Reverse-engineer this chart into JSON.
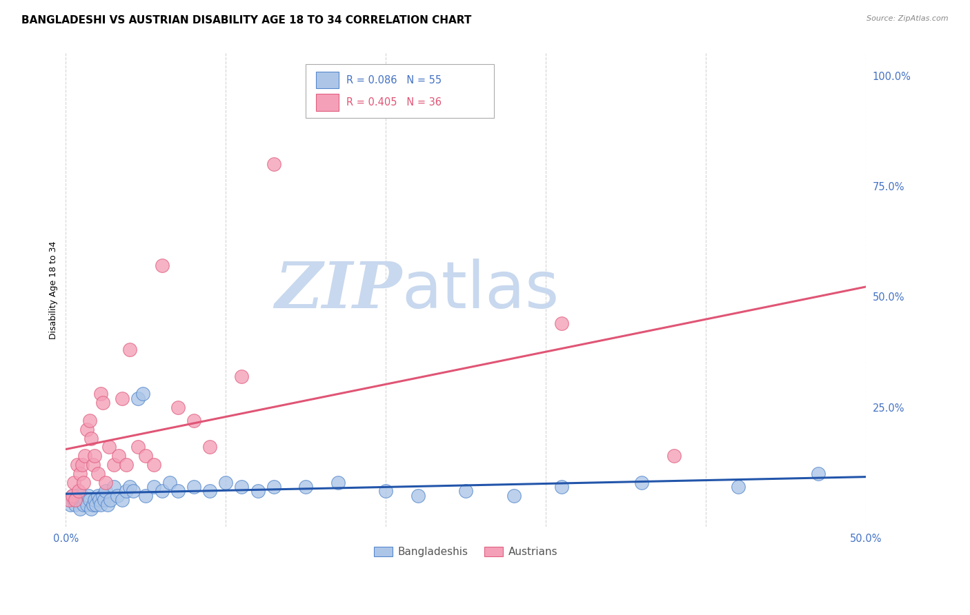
{
  "title": "BANGLADESHI VS AUSTRIAN DISABILITY AGE 18 TO 34 CORRELATION CHART",
  "source": "Source: ZipAtlas.com",
  "ylabel": "Disability Age 18 to 34",
  "xlim": [
    0.0,
    0.5
  ],
  "ylim": [
    -0.02,
    1.05
  ],
  "xticks": [
    0.0,
    0.1,
    0.2,
    0.3,
    0.4,
    0.5
  ],
  "xticklabels": [
    "0.0%",
    "",
    "",
    "",
    "",
    "50.0%"
  ],
  "yticks_right": [
    0.0,
    0.25,
    0.5,
    0.75,
    1.0
  ],
  "yticklabels_right": [
    "",
    "25.0%",
    "50.0%",
    "75.0%",
    "100.0%"
  ],
  "blue_color": "#adc6e8",
  "pink_color": "#f4a0b8",
  "blue_edge_color": "#5588cc",
  "pink_edge_color": "#e06080",
  "blue_line_color": "#2255aa",
  "pink_line_color": "#e05575",
  "legend_text_blue": "#4472c4",
  "legend_text_pink": "#e05575",
  "grid_color": "#d0d0d0",
  "watermark_zip_color": "#c8d8ee",
  "watermark_atlas_color": "#c8d8ee",
  "blue_scatter_x": [
    0.002,
    0.003,
    0.004,
    0.005,
    0.006,
    0.007,
    0.008,
    0.009,
    0.01,
    0.011,
    0.012,
    0.013,
    0.014,
    0.015,
    0.016,
    0.017,
    0.018,
    0.019,
    0.02,
    0.021,
    0.022,
    0.023,
    0.024,
    0.025,
    0.026,
    0.028,
    0.03,
    0.032,
    0.035,
    0.038,
    0.04,
    0.042,
    0.045,
    0.048,
    0.05,
    0.055,
    0.06,
    0.065,
    0.07,
    0.08,
    0.09,
    0.1,
    0.11,
    0.12,
    0.13,
    0.15,
    0.17,
    0.2,
    0.22,
    0.25,
    0.28,
    0.31,
    0.36,
    0.42,
    0.47
  ],
  "blue_scatter_y": [
    0.04,
    0.03,
    0.05,
    0.04,
    0.03,
    0.05,
    0.04,
    0.02,
    0.05,
    0.03,
    0.04,
    0.03,
    0.05,
    0.04,
    0.02,
    0.03,
    0.04,
    0.03,
    0.05,
    0.04,
    0.03,
    0.05,
    0.04,
    0.06,
    0.03,
    0.04,
    0.07,
    0.05,
    0.04,
    0.06,
    0.07,
    0.06,
    0.27,
    0.28,
    0.05,
    0.07,
    0.06,
    0.08,
    0.06,
    0.07,
    0.06,
    0.08,
    0.07,
    0.06,
    0.07,
    0.07,
    0.08,
    0.06,
    0.05,
    0.06,
    0.05,
    0.07,
    0.08,
    0.07,
    0.1
  ],
  "pink_scatter_x": [
    0.002,
    0.004,
    0.005,
    0.006,
    0.007,
    0.008,
    0.009,
    0.01,
    0.011,
    0.012,
    0.013,
    0.015,
    0.016,
    0.017,
    0.018,
    0.02,
    0.022,
    0.023,
    0.025,
    0.027,
    0.03,
    0.033,
    0.035,
    0.038,
    0.04,
    0.045,
    0.05,
    0.055,
    0.06,
    0.07,
    0.08,
    0.09,
    0.11,
    0.13,
    0.31,
    0.38
  ],
  "pink_scatter_y": [
    0.04,
    0.05,
    0.08,
    0.04,
    0.12,
    0.06,
    0.1,
    0.12,
    0.08,
    0.14,
    0.2,
    0.22,
    0.18,
    0.12,
    0.14,
    0.1,
    0.28,
    0.26,
    0.08,
    0.16,
    0.12,
    0.14,
    0.27,
    0.12,
    0.38,
    0.16,
    0.14,
    0.12,
    0.57,
    0.25,
    0.22,
    0.16,
    0.32,
    0.8,
    0.44,
    0.14
  ],
  "background_color": "#ffffff",
  "title_fontsize": 11,
  "axis_label_fontsize": 9,
  "source_fontsize": 8
}
